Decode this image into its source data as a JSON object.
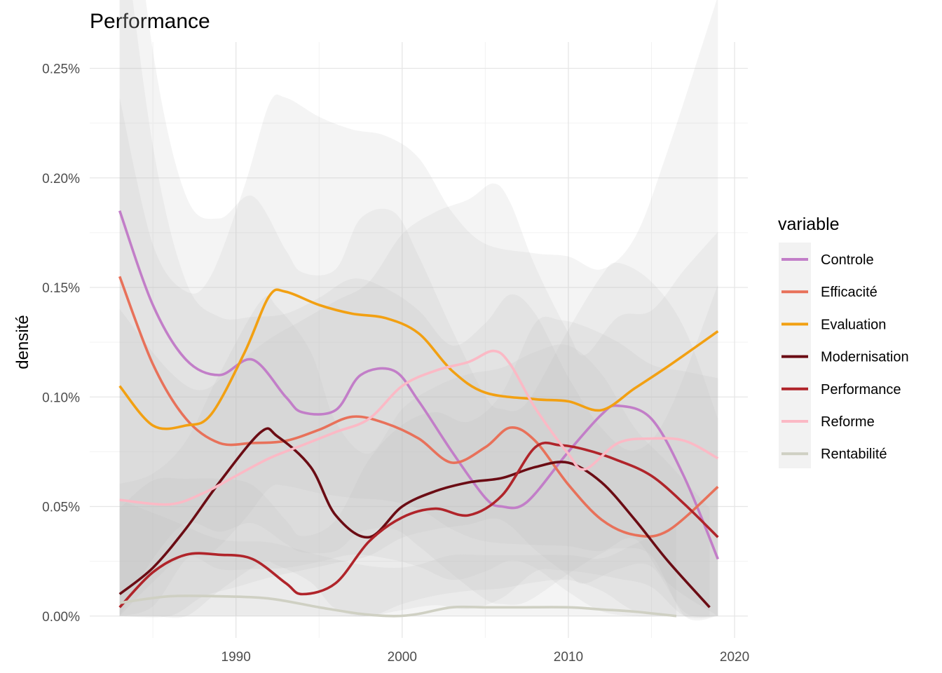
{
  "chart_data": {
    "type": "line",
    "title": "Performance",
    "xlabel": "",
    "ylabel": "densité",
    "xlim": [
      1981.2,
      2020.8
    ],
    "ylim": [
      -0.0001,
      0.00262
    ],
    "x_ticks": [
      1990,
      2000,
      2010,
      2020
    ],
    "y_ticks": [
      0,
      0.0005,
      0.001,
      0.0015,
      0.002,
      0.0025
    ],
    "y_tick_labels": [
      "0.00%",
      "0.05%",
      "0.10%",
      "0.15%",
      "0.20%",
      "0.25%"
    ],
    "grid": true,
    "confidence_bands": true,
    "legend": {
      "title": "variable",
      "position": "right"
    },
    "series": [
      {
        "name": "Controle",
        "color": "#c27ec8",
        "x": [
          1983,
          1985,
          1987,
          1989,
          1991,
          1993,
          1994,
          1996,
          1997.5,
          1999.5,
          2001,
          2003,
          2005,
          2006,
          2007.5,
          2010,
          2012,
          2013,
          2015,
          2017,
          2019
        ],
        "y": [
          0.00185,
          0.00142,
          0.00117,
          0.0011,
          0.00117,
          0.001,
          0.00093,
          0.00094,
          0.0011,
          0.00112,
          0.00098,
          0.00075,
          0.00054,
          0.0005,
          0.00052,
          0.00075,
          0.00092,
          0.00096,
          0.0009,
          0.00063,
          0.00026
        ]
      },
      {
        "name": "Efficacité",
        "color": "#e8715a",
        "x": [
          1983,
          1985,
          1987,
          1989,
          1991,
          1993,
          1995,
          1997,
          1999,
          2001,
          2003,
          2005,
          2006.5,
          2008,
          2010,
          2012,
          2014,
          2016,
          2019
        ],
        "y": [
          0.00155,
          0.00115,
          0.0009,
          0.00079,
          0.00079,
          0.0008,
          0.00085,
          0.00091,
          0.00088,
          0.00081,
          0.0007,
          0.00077,
          0.00086,
          0.0008,
          0.0006,
          0.00044,
          0.00037,
          0.00039,
          0.00059
        ]
      },
      {
        "name": "Evaluation",
        "color": "#f2a012",
        "x": [
          1983,
          1985,
          1987,
          1988.5,
          1990.5,
          1992,
          1993,
          1995,
          1997,
          1999,
          2001,
          2003,
          2005,
          2008,
          2010,
          2012,
          2014,
          2016,
          2019
        ],
        "y": [
          0.00105,
          0.00087,
          0.00087,
          0.00092,
          0.0012,
          0.00146,
          0.00148,
          0.00142,
          0.00138,
          0.00136,
          0.00129,
          0.00112,
          0.00102,
          0.00099,
          0.00098,
          0.00094,
          0.00104,
          0.00114,
          0.0013
        ]
      },
      {
        "name": "Modernisation",
        "color": "#6b0c14",
        "x": [
          1983,
          1985,
          1987,
          1989,
          1991.5,
          1992.5,
          1994.5,
          1996,
          1998,
          2000,
          2002,
          2004,
          2006,
          2008,
          2010,
          2012,
          2014,
          2016,
          2018.5
        ],
        "y": [
          0.0001,
          0.00022,
          0.0004,
          0.00061,
          0.00084,
          0.00082,
          0.00068,
          0.00046,
          0.00036,
          0.0005,
          0.00057,
          0.00061,
          0.00063,
          0.00068,
          0.0007,
          0.00061,
          0.00044,
          0.00025,
          4e-05
        ]
      },
      {
        "name": "Performance",
        "color": "#b0242a",
        "x": [
          1983,
          1985,
          1987,
          1989,
          1991,
          1993,
          1994,
          1996,
          1998,
          2000,
          2002,
          2004,
          2006,
          2008,
          2009.5,
          2011,
          2013,
          2015,
          2017,
          2019
        ],
        "y": [
          4e-05,
          0.0002,
          0.00028,
          0.00028,
          0.00026,
          0.00015,
          0.0001,
          0.00015,
          0.00034,
          0.00045,
          0.00049,
          0.00046,
          0.00055,
          0.00077,
          0.00078,
          0.00076,
          0.00071,
          0.00064,
          0.00051,
          0.00036
        ]
      },
      {
        "name": "Reforme",
        "color": "#fbb9c5",
        "x": [
          1983,
          1986,
          1988,
          1990,
          1992,
          1994,
          1996,
          1998,
          2000,
          2002,
          2004,
          2005.5,
          2006.5,
          2008,
          2010,
          2011,
          2013,
          2015,
          2017,
          2019
        ],
        "y": [
          0.00053,
          0.00051,
          0.00056,
          0.00064,
          0.00072,
          0.00078,
          0.00084,
          0.0009,
          0.00105,
          0.00112,
          0.00116,
          0.00121,
          0.00115,
          0.00095,
          0.00074,
          0.00067,
          0.00079,
          0.00081,
          0.0008,
          0.00072
        ]
      },
      {
        "name": "Rentabilité",
        "color": "#cfd0c3",
        "x": [
          1983,
          1986,
          1989,
          1992,
          1995,
          1997.5,
          1999.5,
          2001,
          2003,
          2005,
          2007,
          2010,
          2012,
          2014,
          2016.5
        ],
        "y": [
          6e-05,
          9e-05,
          9e-05,
          8e-05,
          4e-05,
          1e-05,
          0.0,
          1e-05,
          4e-05,
          4e-05,
          4e-05,
          4e-05,
          3e-05,
          2e-05,
          0.0
        ]
      }
    ]
  }
}
